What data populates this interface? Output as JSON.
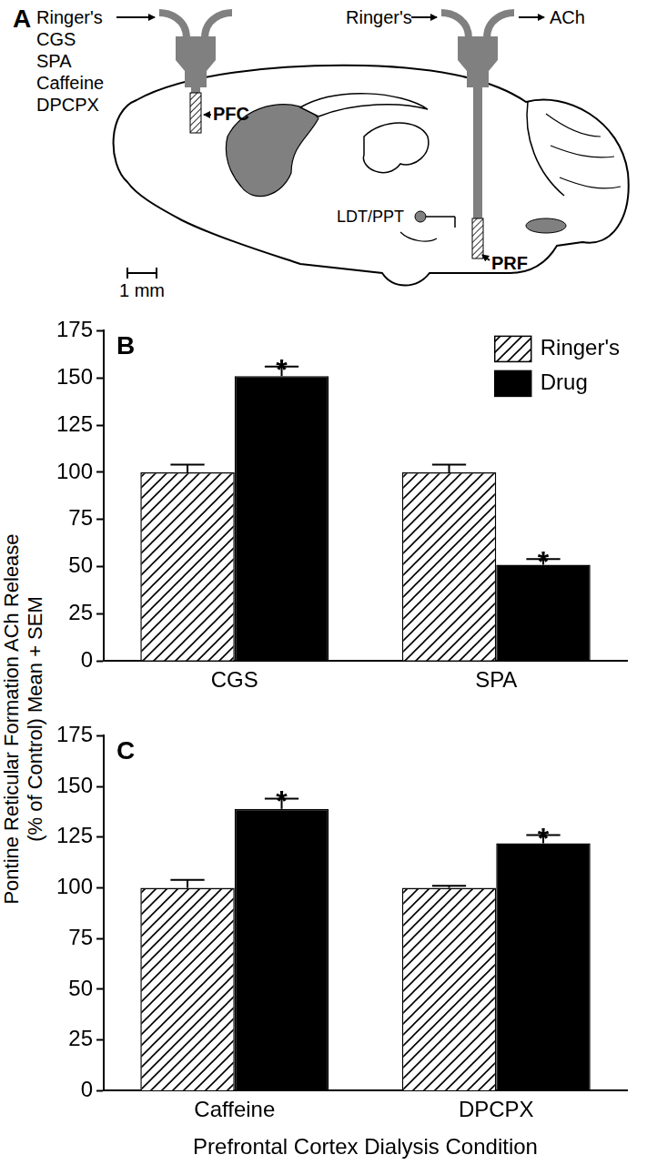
{
  "panel_a": {
    "label": "A",
    "left_probe": {
      "inputs": [
        "Ringer's",
        "CGS",
        "SPA",
        "Caffeine",
        "DPCPX"
      ],
      "target": "PFC"
    },
    "right_probe": {
      "input": "Ringer's",
      "output": "ACh",
      "target": "PRF"
    },
    "nucleus": "LDT/PPT",
    "scale_bar": "1 mm"
  },
  "y_axis_title": [
    "Pontine Reticular Formation ACh Release",
    "(% of Control) Mean + SEM"
  ],
  "chart_data": [
    {
      "type": "bar",
      "panel_label": "B",
      "categories": [
        "CGS",
        "SPA"
      ],
      "series": [
        {
          "name": "Ringer's",
          "color": "#000000",
          "values": [
            100,
            100
          ],
          "errors": [
            4,
            4
          ]
        },
        {
          "name": "Drug",
          "color": "#000000",
          "values": [
            151,
            51
          ],
          "errors": [
            5,
            3
          ],
          "annotations": [
            "*",
            "*"
          ]
        }
      ],
      "ylim": [
        0,
        175
      ],
      "yticks": [
        0,
        25,
        50,
        75,
        100,
        125,
        150,
        175
      ],
      "grid": false,
      "legend": "upper right"
    },
    {
      "type": "bar",
      "panel_label": "C",
      "categories": [
        "Caffeine",
        "DPCPX"
      ],
      "xlabel": "Prefrontal Cortex Dialysis Condition",
      "series": [
        {
          "name": "Ringer's",
          "color": "#000000",
          "values": [
            100,
            100
          ],
          "errors": [
            4,
            1
          ]
        },
        {
          "name": "Drug",
          "color": "#000000",
          "values": [
            139,
            122
          ],
          "errors": [
            5,
            4
          ],
          "annotations": [
            "*",
            "*"
          ]
        }
      ],
      "ylim": [
        0,
        175
      ],
      "yticks": [
        0,
        25,
        50,
        75,
        100,
        125,
        150,
        175
      ],
      "grid": false
    }
  ]
}
